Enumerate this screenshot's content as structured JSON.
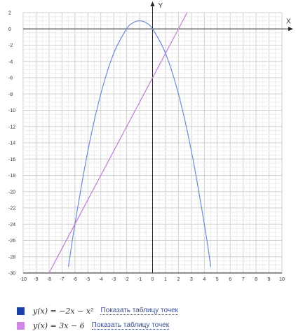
{
  "chart_data": {
    "type": "line",
    "xlabel": "X",
    "ylabel": "Y",
    "xlim": [
      -10,
      10
    ],
    "ylim": [
      -30,
      2
    ],
    "x_ticks": [
      -10,
      -9,
      -8,
      -7,
      -6,
      -5,
      -4,
      -3,
      -2,
      -1,
      0,
      1,
      2,
      3,
      4,
      5,
      6,
      7,
      8,
      9,
      10
    ],
    "y_ticks": [
      2,
      0,
      -2,
      -4,
      -6,
      -8,
      -10,
      -12,
      -14,
      -16,
      -18,
      -20,
      -22,
      -24,
      -26,
      -28,
      -30
    ],
    "grid": true,
    "series": [
      {
        "name": "y(x) = −2x − x²",
        "color": "#6f8bd3",
        "x": [
          -6.5,
          -6,
          -5,
          -4,
          -3,
          -2,
          -1.5,
          -1,
          -0.5,
          0,
          1,
          2,
          3,
          4,
          4.5
        ],
        "y": [
          -29.25,
          -24,
          -15,
          -8,
          -3,
          0,
          0.75,
          1,
          0.75,
          0,
          -3,
          -8,
          -15,
          -24,
          -29.25
        ]
      },
      {
        "name": "y(x) = 3x − 6",
        "color": "#c27ad8",
        "x": [
          -8,
          2.67
        ],
        "y": [
          -30,
          2
        ]
      }
    ]
  },
  "legend": [
    {
      "formula": "y(x) = −2x − x²",
      "swatch_color": "#1f3fa8",
      "link": "Показать таблицу точек"
    },
    {
      "formula": "y(x) = 3x − 6",
      "swatch_color": "#cf87e6",
      "link": "Показать таблицу точек"
    }
  ]
}
